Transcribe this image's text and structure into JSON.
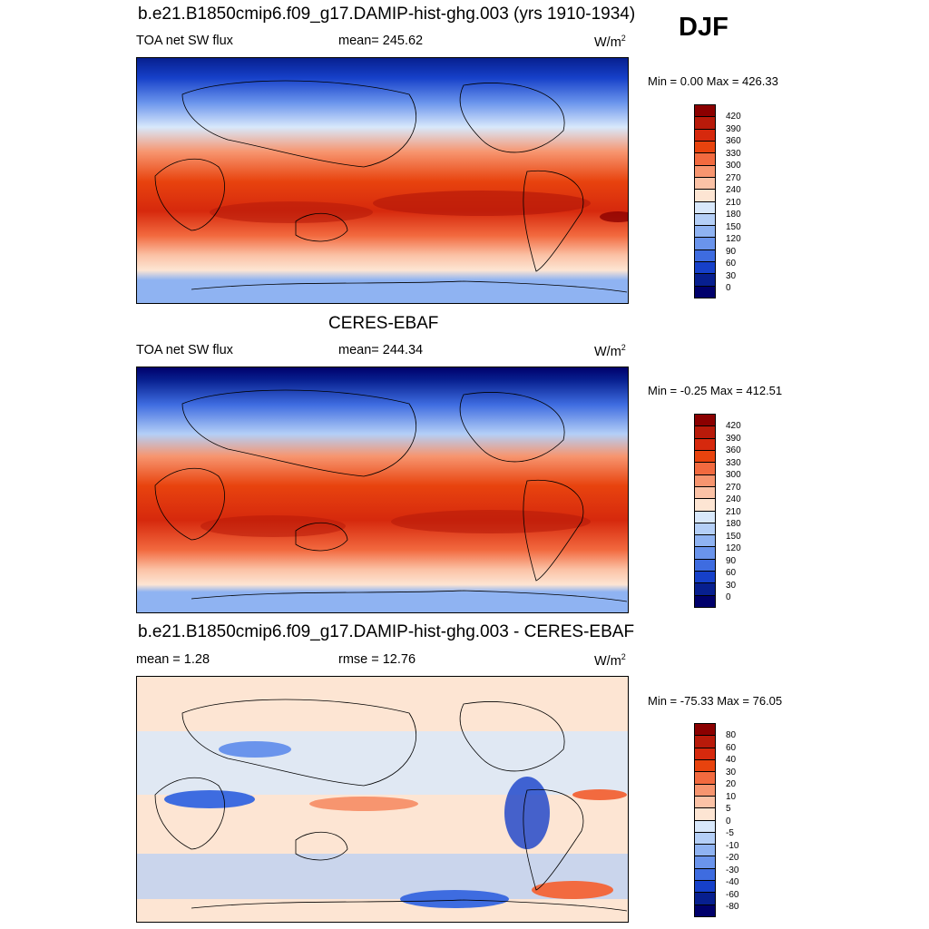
{
  "season": "DJF",
  "units_main": "W/m",
  "units_sup": "2",
  "panels": [
    {
      "title": "b.e21.B1850cmip6.f09_g17.DAMIP-hist-ghg.003 (yrs 1910-1934)",
      "left_label": "TOA net SW flux",
      "center_label": "mean= 245.62",
      "minmax": "Min =   0.00 Max = 426.33",
      "levels": [
        "420",
        "390",
        "360",
        "330",
        "300",
        "270",
        "240",
        "210",
        "180",
        "150",
        "120",
        "90",
        "60",
        "30",
        "0"
      ]
    },
    {
      "title": "CERES-EBAF",
      "left_label": "TOA net SW flux",
      "center_label": "mean= 244.34",
      "minmax": "Min =  -0.25 Max = 412.51",
      "levels": [
        "420",
        "390",
        "360",
        "330",
        "300",
        "270",
        "240",
        "210",
        "180",
        "150",
        "120",
        "90",
        "60",
        "30",
        "0"
      ]
    },
    {
      "title": "b.e21.B1850cmip6.f09_g17.DAMIP-hist-ghg.003 - CERES-EBAF",
      "left_label": "mean =   1.28",
      "center_label": "rmse =  12.76",
      "minmax": "Min = -75.33 Max =  76.05",
      "levels": [
        "80",
        "60",
        "40",
        "30",
        "20",
        "10",
        "5",
        "0",
        "-5",
        "-10",
        "-20",
        "-30",
        "-40",
        "-60",
        "-80"
      ]
    }
  ],
  "colors": {
    "flux_scale": [
      "#8b0000",
      "#b81a0a",
      "#d6290d",
      "#e8430e",
      "#f26a3f",
      "#f7956f",
      "#fbc2a6",
      "#fde5d3",
      "#d8e8fb",
      "#b4cff7",
      "#8fb3f2",
      "#6a94ec",
      "#3e6ce0",
      "#1640c9",
      "#071f8f",
      "#00006b"
    ],
    "diff_scale": [
      "#8b0000",
      "#b81a0a",
      "#d6290d",
      "#e8430e",
      "#f26a3f",
      "#f7956f",
      "#fbc2a6",
      "#fde5d3",
      "#d8e8fb",
      "#b4cff7",
      "#8fb3f2",
      "#6a94ec",
      "#3e6ce0",
      "#1640c9",
      "#071f8f",
      "#00006b"
    ]
  }
}
